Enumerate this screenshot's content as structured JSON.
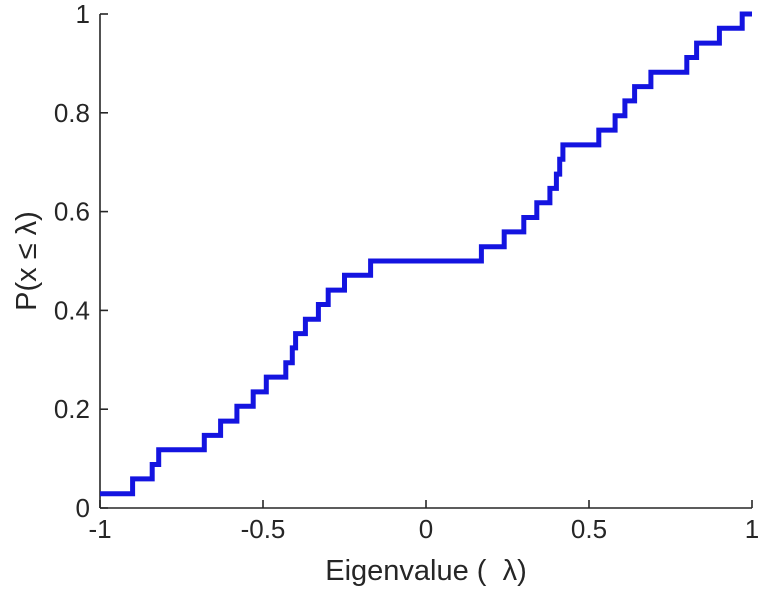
{
  "chart_data": {
    "type": "line",
    "subtype": "ecdf-step",
    "title": "",
    "xlabel": "Eigenvalue (  λ)",
    "ylabel": "P(x ≤ λ)",
    "xlim": [
      -1,
      1
    ],
    "ylim": [
      0,
      1
    ],
    "xticks": [
      -1,
      -0.5,
      0,
      0.5,
      1
    ],
    "xtick_labels": [
      "-1",
      "-0.5",
      "0",
      "0.5",
      "1"
    ],
    "yticks": [
      0,
      0.2,
      0.4,
      0.6,
      0.8,
      1
    ],
    "ytick_labels": [
      "0",
      "0.2",
      "0.4",
      "0.6",
      "0.8",
      "1"
    ],
    "grid": false,
    "legend": "none",
    "line_color": "#1414E0",
    "line_width": 5,
    "axis_color": "#262626",
    "background_color": "#ffffff",
    "steps": [
      [
        -1.0,
        0.029
      ],
      [
        -0.9,
        0.059
      ],
      [
        -0.84,
        0.088
      ],
      [
        -0.82,
        0.118
      ],
      [
        -0.68,
        0.147
      ],
      [
        -0.63,
        0.176
      ],
      [
        -0.58,
        0.206
      ],
      [
        -0.53,
        0.235
      ],
      [
        -0.49,
        0.265
      ],
      [
        -0.43,
        0.294
      ],
      [
        -0.41,
        0.324
      ],
      [
        -0.4,
        0.353
      ],
      [
        -0.37,
        0.382
      ],
      [
        -0.33,
        0.412
      ],
      [
        -0.3,
        0.441
      ],
      [
        -0.25,
        0.471
      ],
      [
        -0.17,
        0.5
      ],
      [
        0.17,
        0.529
      ],
      [
        0.24,
        0.559
      ],
      [
        0.3,
        0.588
      ],
      [
        0.34,
        0.618
      ],
      [
        0.38,
        0.647
      ],
      [
        0.4,
        0.676
      ],
      [
        0.41,
        0.706
      ],
      [
        0.42,
        0.735
      ],
      [
        0.53,
        0.765
      ],
      [
        0.58,
        0.794
      ],
      [
        0.61,
        0.824
      ],
      [
        0.64,
        0.853
      ],
      [
        0.69,
        0.882
      ],
      [
        0.8,
        0.912
      ],
      [
        0.83,
        0.941
      ],
      [
        0.9,
        0.971
      ],
      [
        0.97,
        1.0
      ]
    ]
  }
}
